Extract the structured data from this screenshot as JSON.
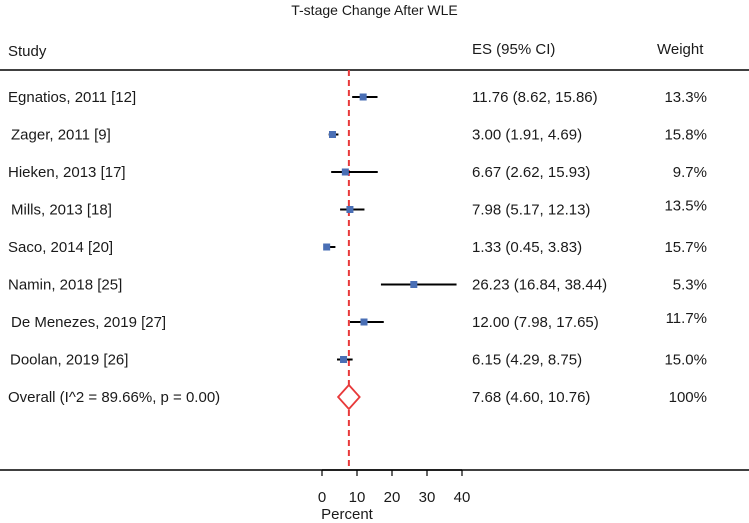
{
  "chart_data": {
    "type": "forest",
    "title": "T-stage Change After WLE",
    "headers": {
      "study": "Study",
      "es": "ES (95% CI)",
      "weight": "Weight"
    },
    "xlabel": "Percent",
    "xlim": [
      0,
      40
    ],
    "xticks": [
      "0",
      "10",
      "20",
      "30",
      "40"
    ],
    "reference_line": 7.68,
    "studies": [
      {
        "label": "Egnatios, 2011 [12]",
        "es": 11.76,
        "lo": 8.62,
        "hi": 15.86,
        "es_text": "11.76 (8.62, 15.86)",
        "weight": "13.3%"
      },
      {
        "label": "Zager, 2011 [9]",
        "es": 3.0,
        "lo": 1.91,
        "hi": 4.69,
        "es_text": "3.00 (1.91, 4.69)",
        "weight": "15.8%"
      },
      {
        "label": "Hieken, 2013 [17]",
        "es": 6.67,
        "lo": 2.62,
        "hi": 15.93,
        "es_text": "6.67 (2.62, 15.93)",
        "weight": "9.7%"
      },
      {
        "label": "Mills, 2013 [18]",
        "es": 7.98,
        "lo": 5.17,
        "hi": 12.13,
        "es_text": "7.98 (5.17, 12.13)",
        "weight": "13.5%"
      },
      {
        "label": "Saco, 2014 [20]",
        "es": 1.33,
        "lo": 0.45,
        "hi": 3.83,
        "es_text": "1.33 (0.45, 3.83)",
        "weight": "15.7%"
      },
      {
        "label": "Namin,  2018 [25]",
        "es": 26.23,
        "lo": 16.84,
        "hi": 38.44,
        "es_text": "26.23 (16.84, 38.44)",
        "weight": "5.3%"
      },
      {
        "label": "De Menezes, 2019 [27]",
        "es": 12.0,
        "lo": 7.98,
        "hi": 17.65,
        "es_text": "12.00 (7.98, 17.65)",
        "weight": "11.7%"
      },
      {
        "label": "Doolan,  2019 [26]",
        "es": 6.15,
        "lo": 4.29,
        "hi": 8.75,
        "es_text": "6.15 (4.29, 8.75)",
        "weight": "15.0%"
      }
    ],
    "overall": {
      "label": "Overall (I^2 = 89.66%, p = 0.00)",
      "es": 7.68,
      "lo": 4.6,
      "hi": 10.76,
      "es_text": "7.68 (4.60, 10.76)",
      "weight": "100%"
    },
    "colors": {
      "marker": "#4a6fb5",
      "ci_line": "#000000",
      "reference": "#e8393a",
      "diamond": "#e8393a",
      "rule": "#000000"
    }
  }
}
